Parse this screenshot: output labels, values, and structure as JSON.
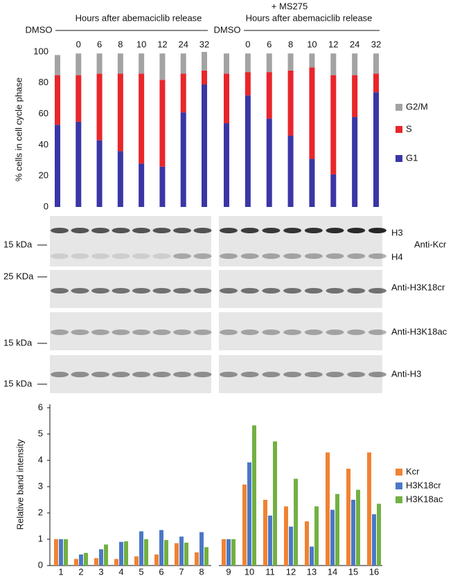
{
  "chart_data": [
    {
      "type": "bar",
      "stacked": true,
      "annotations": [
        "+ MS275",
        "Hours after abemaciclib release",
        "Hours after abemaciclib release"
      ],
      "ylabel": "% cells in cell cycle phase",
      "categories": [
        "DMSO",
        "0",
        "6",
        "8",
        "10",
        "12",
        "24",
        "32",
        "DMSO",
        "0",
        "6",
        "8",
        "10",
        "12",
        "24",
        "32"
      ],
      "series": [
        {
          "name": "G1",
          "color": "#3a36a6",
          "values": [
            53,
            55,
            43,
            36,
            28,
            26,
            61,
            79,
            54,
            72,
            57,
            46,
            31,
            21,
            58,
            74
          ]
        },
        {
          "name": "S",
          "color": "#e8262b",
          "values": [
            32,
            30,
            43,
            50,
            58,
            56,
            25,
            9,
            32,
            15,
            30,
            42,
            59,
            64,
            27,
            12
          ]
        },
        {
          "name": "G2/M",
          "color": "#a3a3a3",
          "values": [
            13,
            14,
            13,
            13,
            13,
            17,
            13,
            12,
            13,
            12,
            12,
            11,
            9,
            14,
            14,
            13
          ]
        }
      ],
      "ylim": [
        0,
        100
      ],
      "yticks": [
        0,
        20,
        40,
        60,
        80,
        100
      ]
    },
    {
      "type": "bar",
      "stacked": false,
      "ylabel": "Relative band intensity",
      "categories": [
        "1",
        "2",
        "3",
        "4",
        "5",
        "6",
        "7",
        "8",
        "9",
        "10",
        "11",
        "12",
        "13",
        "14",
        "15",
        "16"
      ],
      "series": [
        {
          "name": "Kcr",
          "color": "#f08232",
          "values": [
            1,
            0.25,
            0.28,
            0.25,
            0.35,
            0.42,
            0.85,
            0.5,
            1,
            3.08,
            2.5,
            2.25,
            1.68,
            4.3,
            3.68,
            4.3
          ]
        },
        {
          "name": "H3K18cr",
          "color": "#4a78c6",
          "values": [
            1,
            0.42,
            0.62,
            0.9,
            1.3,
            1.35,
            1.1,
            1.27,
            1,
            3.92,
            1.9,
            1.48,
            0.72,
            2.12,
            2.5,
            1.95
          ]
        },
        {
          "name": "H3K18ac",
          "color": "#72b043",
          "values": [
            1,
            0.48,
            0.8,
            0.92,
            1.0,
            0.97,
            0.87,
            0.7,
            1,
            5.33,
            4.72,
            3.3,
            2.25,
            2.72,
            2.88,
            2.35
          ]
        }
      ],
      "ylim": [
        0,
        6
      ],
      "yticks": [
        0,
        1,
        2,
        3,
        4,
        5,
        6
      ]
    }
  ],
  "blots": {
    "markers": [
      "15 kDa",
      "25 KDa",
      "15 kDa",
      "15 kDa"
    ],
    "band_labels": [
      "H3",
      "H4"
    ],
    "antibodies": [
      "Anti-Kcr",
      "Anti-H3K18cr",
      "Anti-H3K18ac",
      "Anti-H3"
    ]
  }
}
